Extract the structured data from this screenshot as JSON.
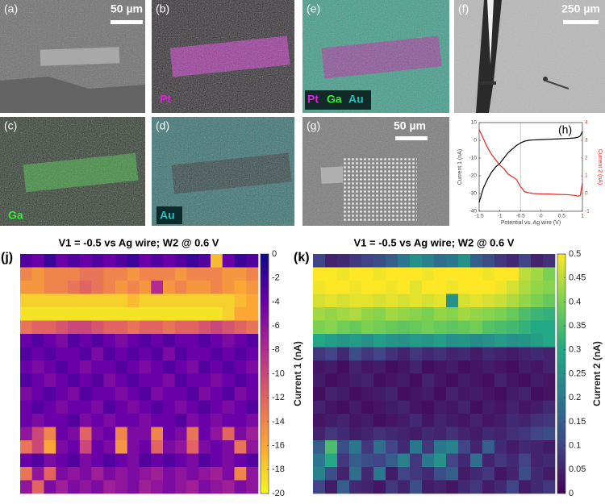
{
  "panels": [
    {
      "label": "(a)",
      "scale": "50 µm"
    },
    {
      "label": "(b)",
      "elements": [
        "Pt"
      ]
    },
    {
      "label": "(e)",
      "elements": [
        "Pt",
        "Ga",
        "Au"
      ]
    },
    {
      "label": "(f)",
      "scale": "250 µm"
    },
    {
      "label": "(c)",
      "elements": [
        "Ga"
      ]
    },
    {
      "label": "(d)",
      "elements": [
        "Au"
      ]
    },
    {
      "label": "(g)",
      "scale": "50 µm"
    }
  ],
  "chart_data": [
    {
      "type": "line",
      "label": "(h)",
      "xlabel": "Potential vs. Ag wire (V)",
      "ylabel": "Current 1 (nA)",
      "y2label": "Current 2 (nA)",
      "x": [
        -1.5,
        -1.4,
        -1.3,
        -1.2,
        -1.1,
        -1,
        -0.9,
        -0.8,
        -0.7,
        -0.6,
        -0.5,
        -0.4,
        -0.3,
        -0.2,
        0,
        0.2,
        0.4,
        0.6,
        0.8,
        0.9,
        0.95,
        1
      ],
      "series": [
        {
          "name": "Current 1",
          "color": "#000000",
          "values": [
            -35,
            -27,
            -22,
            -18,
            -15,
            -13,
            -10,
            -7,
            -5,
            -3,
            -1.5,
            -0.5,
            0,
            0.2,
            0.4,
            0.6,
            0.8,
            1,
            1.3,
            1.8,
            2.5,
            5
          ]
        },
        {
          "name": "Current 2",
          "color": "#e8261f",
          "axis": "y2",
          "values": [
            3.6,
            3.1,
            2.6,
            2.2,
            1.9,
            1.6,
            1.4,
            1.1,
            0.95,
            0.8,
            0.4,
            0.1,
            0.05,
            0,
            -0.02,
            -0.03,
            -0.05,
            -0.06,
            -0.1,
            -0.15,
            -0.1,
            0.6
          ]
        }
      ],
      "vline": -0.5,
      "xlim": [
        -1.5,
        1
      ],
      "xticks": [
        -1.5,
        -1,
        -0.5,
        0,
        0.5,
        1
      ],
      "ylim": [
        -40,
        10
      ],
      "yticks": [
        -40,
        -30,
        -20,
        -10,
        0,
        10
      ],
      "y2lim": [
        -1,
        4
      ],
      "y2ticks": [
        -1,
        0,
        1,
        2,
        3,
        4
      ]
    },
    {
      "type": "heatmap",
      "label": "(j)",
      "title": "V1 = -0.5 vs Ag wire; W2 @ 0.6 V",
      "zlabel": "Current 1 (nA)",
      "zlim": [
        -20,
        0
      ],
      "zticks": [
        -20,
        -18,
        -16,
        -14,
        -12,
        -10,
        -8,
        -6,
        -4,
        -2,
        0
      ],
      "colors": [
        "#f0f921",
        "#fca636",
        "#e16462",
        "#b12a90",
        "#6a00a8",
        "#0d0887"
      ],
      "values": [
        [
          -3,
          -4,
          -2,
          -4,
          -3,
          -4,
          -3,
          -4,
          -3,
          -2,
          -4,
          -3,
          -4,
          -3,
          -2,
          -3,
          -17,
          -4,
          -2,
          -3
        ],
        [
          -14,
          -15,
          -14,
          -14,
          -14,
          -13,
          -13,
          -14,
          -14,
          -15,
          -14,
          -14,
          -14,
          -15,
          -14,
          -14,
          -14,
          -15,
          -15,
          -14
        ],
        [
          -15,
          -15,
          -14,
          -14,
          -13,
          -12,
          -13,
          -14,
          -15,
          -14,
          -15,
          -8,
          -15,
          -14,
          -15,
          -15,
          -14,
          -15,
          -16,
          -15
        ],
        [
          -18,
          -18,
          -18,
          -18,
          -18,
          -18,
          -18,
          -18,
          -18,
          -17,
          -18,
          -18,
          -18,
          -18,
          -18,
          -18,
          -18,
          -18,
          -17,
          -16
        ],
        [
          -19,
          -19,
          -19,
          -19,
          -19,
          -19,
          -19,
          -19,
          -19,
          -19,
          -19,
          -19,
          -19,
          -19,
          -19,
          -19,
          -19,
          -18,
          -16,
          -16
        ],
        [
          -13,
          -12,
          -12,
          -11,
          -10,
          -10,
          -11,
          -12,
          -12,
          -13,
          -12,
          -12,
          -13,
          -12,
          -12,
          -11,
          -10,
          -11,
          -12,
          -13
        ],
        [
          -4,
          -3,
          -4,
          -5,
          -3,
          -4,
          -3,
          -4,
          -5,
          -4,
          -3,
          -4,
          -3,
          -4,
          -4,
          -3,
          -4,
          -5,
          -4,
          -3
        ],
        [
          -3,
          -4,
          -3,
          -4,
          -4,
          -3,
          -5,
          -3,
          -4,
          -3,
          -4,
          -3,
          -5,
          -3,
          -4,
          -4,
          -3,
          -4,
          -3,
          -4
        ],
        [
          -4,
          -5,
          -4,
          -3,
          -4,
          -5,
          -4,
          -4,
          -3,
          -4,
          -5,
          -4,
          -3,
          -4,
          -5,
          -3,
          -4,
          -3,
          -4,
          -5
        ],
        [
          -3,
          -4,
          -5,
          -4,
          -3,
          -4,
          -3,
          -5,
          -4,
          -3,
          -4,
          -4,
          -5,
          -3,
          -4,
          -4,
          -5,
          -4,
          -3,
          -4
        ],
        [
          -5,
          -4,
          -3,
          -4,
          -5,
          -3,
          -4,
          -4,
          -5,
          -4,
          -3,
          -5,
          -4,
          -4,
          -3,
          -5,
          -4,
          -3,
          -5,
          -4
        ],
        [
          -4,
          -3,
          -4,
          -5,
          -4,
          -4,
          -5,
          -3,
          -4,
          -5,
          -4,
          -3,
          -4,
          -5,
          -4,
          -3,
          -4,
          -5,
          -4,
          -3
        ],
        [
          -4,
          -5,
          -4,
          -4,
          -3,
          -5,
          -4,
          -5,
          -4,
          -4,
          -5,
          -4,
          -4,
          -3,
          -5,
          -4,
          -5,
          -4,
          -4,
          -5
        ],
        [
          -6,
          -10,
          -14,
          -4,
          -5,
          -12,
          -5,
          -4,
          -14,
          -5,
          -5,
          -14,
          -4,
          -5,
          -13,
          -4,
          -6,
          -12,
          -5,
          -7
        ],
        [
          -13,
          -10,
          -16,
          -5,
          -4,
          -10,
          -4,
          -5,
          -15,
          -5,
          -4,
          -12,
          -5,
          -6,
          -12,
          -5,
          -4,
          -5,
          -13,
          -6
        ],
        [
          -4,
          -3,
          -5,
          -4,
          -3,
          -5,
          -4,
          -3,
          -4,
          -5,
          -3,
          -4,
          -3,
          -4,
          -5,
          -3,
          -4,
          -5,
          -4,
          -3
        ],
        [
          -13,
          -6,
          -12,
          -5,
          -6,
          -5,
          -7,
          -5,
          -6,
          -5,
          -6,
          -7,
          -5,
          -6,
          -5,
          -6,
          -7,
          -5,
          -14,
          -6
        ],
        [
          -6,
          -12,
          -5,
          -7,
          -5,
          -6,
          -5,
          -7,
          -6,
          -5,
          -7,
          -6,
          -5,
          -6,
          -7,
          -5,
          -6,
          -7,
          -5,
          -6
        ]
      ]
    },
    {
      "type": "heatmap",
      "label": "(k)",
      "title": "V1 = -0.5 vs Ag wire; W2 @ 0.6 V",
      "zlabel": "Current 2 (nA)",
      "zlim": [
        0,
        0.5
      ],
      "zticks": [
        0,
        0.05,
        0.1,
        0.15,
        0.2,
        0.25,
        0.3,
        0.35,
        0.4,
        0.45,
        0.5
      ],
      "colors": [
        "#440154",
        "#414487",
        "#2a788e",
        "#22a884",
        "#7ad151",
        "#fde725"
      ],
      "values": [
        [
          0.1,
          0.05,
          0.06,
          0.08,
          0.1,
          0.12,
          0.15,
          0.2,
          0.25,
          0.22,
          0.18,
          0.2,
          0.25,
          0.15,
          0.12,
          0.08,
          0.06,
          0.1,
          0.05,
          0.07
        ],
        [
          0.5,
          0.5,
          0.49,
          0.5,
          0.5,
          0.49,
          0.5,
          0.5,
          0.5,
          0.49,
          0.5,
          0.5,
          0.5,
          0.5,
          0.49,
          0.5,
          0.5,
          0.45,
          0.43,
          0.4
        ],
        [
          0.49,
          0.5,
          0.5,
          0.49,
          0.5,
          0.5,
          0.49,
          0.5,
          0.48,
          0.5,
          0.5,
          0.49,
          0.5,
          0.5,
          0.5,
          0.49,
          0.47,
          0.44,
          0.42,
          0.41
        ],
        [
          0.47,
          0.48,
          0.47,
          0.48,
          0.48,
          0.47,
          0.48,
          0.47,
          0.48,
          0.47,
          0.48,
          0.25,
          0.47,
          0.48,
          0.47,
          0.46,
          0.44,
          0.42,
          0.4,
          0.38
        ],
        [
          0.43,
          0.42,
          0.43,
          0.44,
          0.42,
          0.41,
          0.43,
          0.42,
          0.41,
          0.4,
          0.42,
          0.41,
          0.43,
          0.42,
          0.41,
          0.4,
          0.38,
          0.35,
          0.33,
          0.32
        ],
        [
          0.4,
          0.41,
          0.39,
          0.38,
          0.4,
          0.39,
          0.38,
          0.37,
          0.38,
          0.39,
          0.38,
          0.37,
          0.38,
          0.39,
          0.36,
          0.35,
          0.34,
          0.32,
          0.3,
          0.3
        ],
        [
          0.3,
          0.28,
          0.26,
          0.27,
          0.25,
          0.28,
          0.26,
          0.25,
          0.27,
          0.26,
          0.28,
          0.25,
          0.26,
          0.24,
          0.25,
          0.27,
          0.25,
          0.26,
          0.28,
          0.3
        ],
        [
          0.08,
          0.1,
          0.06,
          0.12,
          0.08,
          0.1,
          0.07,
          0.05,
          0.08,
          0.06,
          0.07,
          0.05,
          0.06,
          0.04,
          0.06,
          0.05,
          0.04,
          0.05,
          0.06,
          0.05
        ],
        [
          0.03,
          0.04,
          0.02,
          0.05,
          0.03,
          0.04,
          0.02,
          0.03,
          0.05,
          0.02,
          0.03,
          0.04,
          0.02,
          0.03,
          0.04,
          0.03,
          0.02,
          0.04,
          0.03,
          0.05
        ],
        [
          0.04,
          0.02,
          0.03,
          0.04,
          0.05,
          0.02,
          0.03,
          0.04,
          0.02,
          0.05,
          0.03,
          0.02,
          0.04,
          0.03,
          0.02,
          0.05,
          0.03,
          0.02,
          0.04,
          0.03
        ],
        [
          0.02,
          0.05,
          0.04,
          0.02,
          0.03,
          0.04,
          0.05,
          0.02,
          0.03,
          0.04,
          0.02,
          0.05,
          0.03,
          0.04,
          0.03,
          0.02,
          0.04,
          0.05,
          0.02,
          0.03
        ],
        [
          0.05,
          0.03,
          0.02,
          0.04,
          0.02,
          0.03,
          0.04,
          0.05,
          0.03,
          0.02,
          0.04,
          0.03,
          0.05,
          0.02,
          0.04,
          0.03,
          0.05,
          0.03,
          0.04,
          0.06
        ],
        [
          0.03,
          0.04,
          0.05,
          0.03,
          0.04,
          0.02,
          0.03,
          0.04,
          0.06,
          0.03,
          0.05,
          0.04,
          0.03,
          0.05,
          0.03,
          0.04,
          0.06,
          0.05,
          0.07,
          0.08
        ],
        [
          0.05,
          0.08,
          0.06,
          0.04,
          0.05,
          0.07,
          0.06,
          0.05,
          0.04,
          0.06,
          0.05,
          0.07,
          0.05,
          0.04,
          0.06,
          0.05,
          0.07,
          0.08,
          0.1,
          0.12
        ],
        [
          0.15,
          0.35,
          0.12,
          0.2,
          0.08,
          0.18,
          0.1,
          0.06,
          0.2,
          0.08,
          0.2,
          0.22,
          0.1,
          0.05,
          0.15,
          0.06,
          0.04,
          0.06,
          0.05,
          0.04
        ],
        [
          0.2,
          0.3,
          0.08,
          0.15,
          0.12,
          0.1,
          0.15,
          0.22,
          0.08,
          0.2,
          0.25,
          0.1,
          0.06,
          0.18,
          0.05,
          0.08,
          0.06,
          0.1,
          0.05,
          0.06
        ],
        [
          0.22,
          0.12,
          0.05,
          0.18,
          0.06,
          0.2,
          0.04,
          0.1,
          0.08,
          0.06,
          0.12,
          0.15,
          0.04,
          0.06,
          0.08,
          0.03,
          0.05,
          0.12,
          0.06,
          0.04
        ],
        [
          0.1,
          0.04,
          0.15,
          0.06,
          0.05,
          0.03,
          0.08,
          0.05,
          0.12,
          0.04,
          0.05,
          0.03,
          0.06,
          0.08,
          0.04,
          0.06,
          0.1,
          0.04,
          0.06,
          0.08
        ]
      ]
    }
  ]
}
